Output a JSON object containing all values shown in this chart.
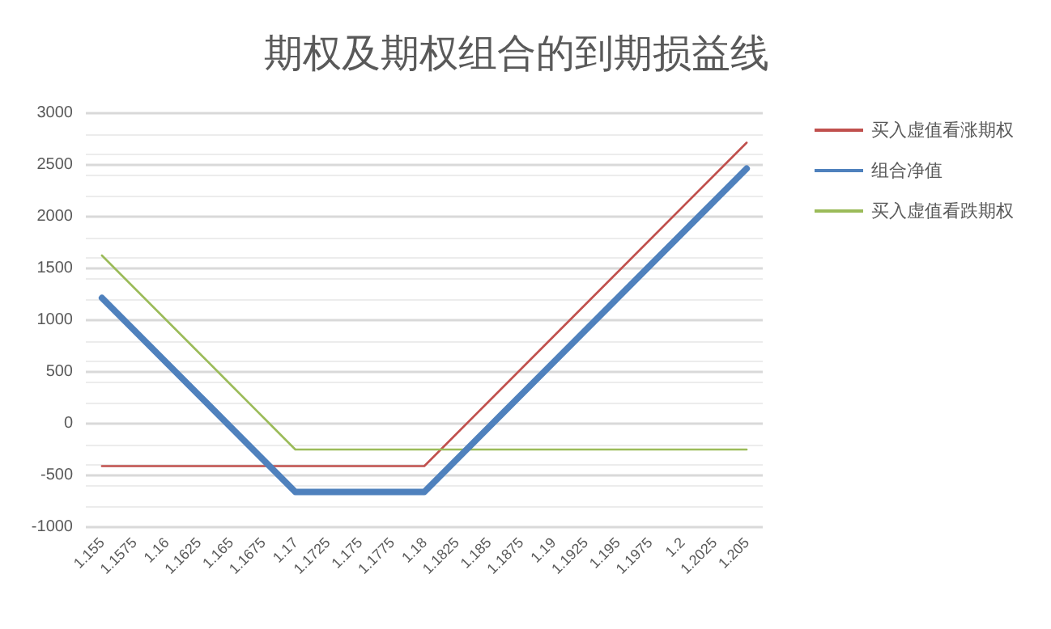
{
  "chart_data": {
    "type": "line",
    "title": "期权及期权组合的到期损益线",
    "categories": [
      "1.155",
      "1.1575",
      "1.16",
      "1.1625",
      "1.165",
      "1.1675",
      "1.17",
      "1.1725",
      "1.175",
      "1.1775",
      "1.18",
      "1.1825",
      "1.185",
      "1.1875",
      "1.19",
      "1.1925",
      "1.195",
      "1.1975",
      "1.2",
      "1.2025",
      "1.205"
    ],
    "series": [
      {
        "name": "买入虚值看涨期权",
        "color": "#c0504d",
        "values": [
          -410,
          -410,
          -410,
          -410,
          -410,
          -410,
          -410,
          -410,
          -410,
          -410,
          -410,
          -97.5,
          215,
          527.5,
          840,
          1152.5,
          1465,
          1777.5,
          2090,
          2402.5,
          2715
        ]
      },
      {
        "name": "组合净值",
        "color": "#4f81bd",
        "values": [
          1215,
          902.5,
          590,
          277.5,
          -35,
          -347.5,
          -660,
          -660,
          -660,
          -660,
          -660,
          -347.5,
          -35,
          277.5,
          590,
          902.5,
          1215,
          1527.5,
          1840,
          2152.5,
          2465
        ]
      },
      {
        "name": "买入虚值看跌期权",
        "color": "#9bbb59",
        "values": [
          1625,
          1312.5,
          1000,
          687.5,
          375,
          62.5,
          -250,
          -250,
          -250,
          -250,
          -250,
          -250,
          -250,
          -250,
          -250,
          -250,
          -250,
          -250,
          -250,
          -250,
          -250
        ]
      }
    ],
    "ylim": [
      -1000,
      3000
    ],
    "yticks": [
      -1000,
      -500,
      0,
      500,
      1000,
      1500,
      2000,
      2500,
      3000
    ],
    "grid": "y",
    "legend": "right",
    "marker": "none",
    "line_style": "solid"
  }
}
